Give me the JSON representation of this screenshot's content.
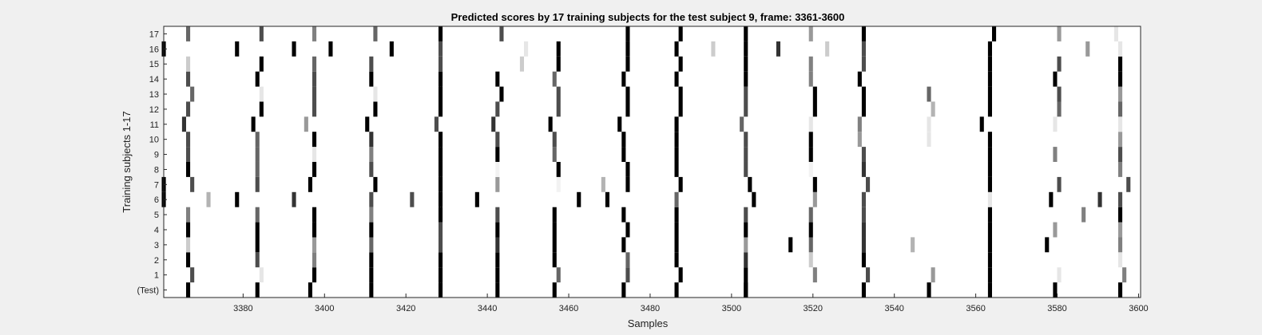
{
  "chart_data": {
    "type": "heatmap",
    "title": "Predicted scores by 17 training subjects for the test subject 9, frame: 3361-3600",
    "xlabel": "Samples",
    "ylabel": "Training subjects 1-17",
    "xlim": [
      3361,
      3600
    ],
    "xticks": [
      3380,
      3400,
      3420,
      3440,
      3460,
      3480,
      3500,
      3520,
      3540,
      3560,
      3580,
      3600
    ],
    "rows": [
      "(Test)",
      "1",
      "2",
      "3",
      "4",
      "5",
      "6",
      "7",
      "8",
      "9",
      "10",
      "11",
      "12",
      "13",
      "14",
      "15",
      "16",
      "17"
    ],
    "colormap": "gray (0 = black, 1 = white)",
    "grid": false,
    "legend": "none",
    "marks": [
      {
        "row": 0,
        "x": [
          3367,
          3384,
          3397,
          3412,
          3429,
          3443,
          3457,
          3474,
          3487,
          3504,
          3504,
          3533,
          3549,
          3564,
          3580,
          3596
        ],
        "v": [
          0.0,
          0.0,
          0.0,
          0.0,
          0.0,
          0.0,
          0.0,
          0.0,
          0.0,
          0.0,
          0.0,
          0.0,
          0.0,
          0.0,
          0.0,
          0.0
        ]
      },
      {
        "row": 1,
        "x": [
          3368,
          3385,
          3398,
          3412,
          3429,
          3443,
          3458,
          3475,
          3488,
          3504,
          3521,
          3534,
          3550,
          3564,
          3581,
          3597
        ],
        "v": [
          0.3,
          0.9,
          0.0,
          0.0,
          0.0,
          0.0,
          0.4,
          0.3,
          0.0,
          0.0,
          0.5,
          0.3,
          0.6,
          0.0,
          0.9,
          0.5
        ]
      },
      {
        "row": 2,
        "x": [
          3367,
          3384,
          3398,
          3412,
          3429,
          3443,
          3457,
          3475,
          3487,
          3504,
          3520,
          3533,
          3564,
          3596
        ],
        "v": [
          0.0,
          0.3,
          0.5,
          0.0,
          0.0,
          0.0,
          0.0,
          0.4,
          0.0,
          0.2,
          0.8,
          0.0,
          0.0,
          0.9
        ]
      },
      {
        "row": 3,
        "x": [
          3367,
          3384,
          3398,
          3412,
          3429,
          3443,
          3457,
          3474,
          3487,
          3504,
          3515,
          3520,
          3533,
          3545,
          3564,
          3578,
          3596
        ],
        "v": [
          0.8,
          0.0,
          0.6,
          0.4,
          0.3,
          0.2,
          0.0,
          0.0,
          0.0,
          0.6,
          0.0,
          0.4,
          0.2,
          0.7,
          0.0,
          0.0,
          0.5
        ]
      },
      {
        "row": 4,
        "x": [
          3367,
          3384,
          3398,
          3412,
          3429,
          3443,
          3457,
          3475,
          3487,
          3504,
          3520,
          3533,
          3564,
          3580,
          3596
        ],
        "v": [
          0.0,
          0.0,
          0.0,
          0.0,
          0.3,
          0.0,
          0.0,
          0.0,
          0.0,
          0.0,
          0.0,
          0.2,
          0.0,
          0.6,
          0.6
        ]
      },
      {
        "row": 5,
        "x": [
          3367,
          3384,
          3398,
          3412,
          3429,
          3443,
          3457,
          3474,
          3487,
          3504,
          3520,
          3533,
          3564,
          3587,
          3596
        ],
        "v": [
          0.5,
          0.4,
          0.0,
          0.5,
          0.0,
          0.3,
          0.0,
          0.0,
          0.0,
          0.3,
          0.4,
          0.3,
          0.0,
          0.5,
          0.0
        ]
      },
      {
        "row": 6,
        "x": [
          3361,
          3372,
          3379,
          3393,
          3412,
          3422,
          3429,
          3438,
          3463,
          3470,
          3487,
          3506,
          3521,
          3533,
          3564,
          3579,
          3591,
          3596
        ],
        "v": [
          0.0,
          0.7,
          0.0,
          0.2,
          0.3,
          0.3,
          0.0,
          0.0,
          0.0,
          0.0,
          0.4,
          0.0,
          0.6,
          0.3,
          0.9,
          0.0,
          0.2,
          0.3
        ]
      },
      {
        "row": 7,
        "x": [
          3361,
          3368,
          3384,
          3397,
          3413,
          3429,
          3443,
          3458,
          3469,
          3475,
          3488,
          3505,
          3521,
          3534,
          3564,
          3581,
          3598
        ],
        "v": [
          0.0,
          0.3,
          0.3,
          0.0,
          0.0,
          0.0,
          0.6,
          0.95,
          0.7,
          0.0,
          0.0,
          0.0,
          0.0,
          0.3,
          0.0,
          0.3,
          0.3
        ]
      },
      {
        "row": 8,
        "x": [
          3367,
          3384,
          3398,
          3412,
          3429,
          3443,
          3458,
          3475,
          3487,
          3504,
          3520,
          3533,
          3564,
          3596
        ],
        "v": [
          0.0,
          0.4,
          0.0,
          0.3,
          0.0,
          0.95,
          0.0,
          0.0,
          0.0,
          0.3,
          0.95,
          0.2,
          0.0,
          0.5
        ]
      },
      {
        "row": 9,
        "x": [
          3367,
          3384,
          3398,
          3412,
          3429,
          3443,
          3457,
          3474,
          3487,
          3504,
          3520,
          3533,
          3564,
          3580,
          3596
        ],
        "v": [
          0.3,
          0.4,
          0.9,
          0.5,
          0.0,
          0.0,
          0.4,
          0.0,
          0.0,
          0.3,
          0.0,
          0.3,
          0.0,
          0.5,
          0.3
        ]
      },
      {
        "row": 10,
        "x": [
          3367,
          3384,
          3398,
          3412,
          3429,
          3443,
          3457,
          3474,
          3487,
          3504,
          3520,
          3532,
          3549,
          3564,
          3596
        ],
        "v": [
          0.3,
          0.4,
          0.0,
          0.2,
          0.0,
          0.3,
          0.3,
          0.0,
          0.0,
          0.3,
          0.0,
          0.6,
          0.9,
          0.0,
          0.6
        ]
      },
      {
        "row": 11,
        "x": [
          3366,
          3383,
          3396,
          3411,
          3428,
          3442,
          3456,
          3473,
          3487,
          3503,
          3520,
          3532,
          3549,
          3562,
          3580,
          3596
        ],
        "v": [
          0.2,
          0.0,
          0.6,
          0.0,
          0.3,
          0.2,
          0.0,
          0.0,
          0.0,
          0.4,
          0.9,
          0.5,
          0.9,
          0.0,
          0.9,
          0.9
        ]
      },
      {
        "row": 12,
        "x": [
          3367,
          3385,
          3398,
          3413,
          3429,
          3443,
          3458,
          3475,
          3488,
          3504,
          3521,
          3533,
          3550,
          3564,
          3581,
          3596
        ],
        "v": [
          0.3,
          0.0,
          0.3,
          0.0,
          0.0,
          0.3,
          0.3,
          0.0,
          0.0,
          0.3,
          0.0,
          0.0,
          0.7,
          0.0,
          0.4,
          0.4
        ]
      },
      {
        "row": 13,
        "x": [
          3368,
          3385,
          3398,
          3413,
          3429,
          3444,
          3458,
          3475,
          3488,
          3504,
          3521,
          3533,
          3549,
          3564,
          3581,
          3596
        ],
        "v": [
          0.4,
          0.9,
          0.3,
          0.9,
          0.0,
          0.0,
          0.3,
          0.0,
          0.0,
          0.3,
          0.0,
          0.0,
          0.4,
          0.0,
          0.3,
          0.6
        ]
      },
      {
        "row": 14,
        "x": [
          3367,
          3384,
          3398,
          3412,
          3429,
          3443,
          3457,
          3474,
          3487,
          3504,
          3520,
          3532,
          3564,
          3580,
          3596
        ],
        "v": [
          0.3,
          0.0,
          0.3,
          0.0,
          0.0,
          0.0,
          0.4,
          0.0,
          0.0,
          0.0,
          0.5,
          0.0,
          0.0,
          0.0,
          0.0
        ]
      },
      {
        "row": 15,
        "x": [
          3367,
          3385,
          3398,
          3412,
          3429,
          3449,
          3458,
          3475,
          3488,
          3504,
          3520,
          3533,
          3564,
          3581,
          3596
        ],
        "v": [
          0.8,
          0.0,
          0.4,
          0.3,
          0.3,
          0.8,
          0.0,
          0.0,
          0.0,
          0.0,
          0.5,
          0.3,
          0.0,
          0.3,
          0.0
        ]
      },
      {
        "row": 16,
        "x": [
          3361,
          3379,
          3393,
          3402,
          3417,
          3429,
          3450,
          3458,
          3475,
          3487,
          3496,
          3504,
          3512,
          3524,
          3533,
          3564,
          3588,
          3596
        ],
        "v": [
          0.0,
          0.0,
          0.0,
          0.0,
          0.0,
          0.3,
          0.9,
          0.0,
          0.0,
          0.0,
          0.8,
          0.0,
          0.2,
          0.8,
          0.3,
          0.0,
          0.6,
          0.9
        ]
      },
      {
        "row": 17,
        "x": [
          3367,
          3385,
          3398,
          3413,
          3429,
          3444,
          3475,
          3488,
          3504,
          3520,
          3533,
          3565,
          3581,
          3595
        ],
        "v": [
          0.4,
          0.3,
          0.5,
          0.4,
          0.0,
          0.3,
          0.0,
          0.0,
          0.0,
          0.6,
          0.0,
          0.0,
          0.6,
          0.9
        ]
      }
    ]
  }
}
